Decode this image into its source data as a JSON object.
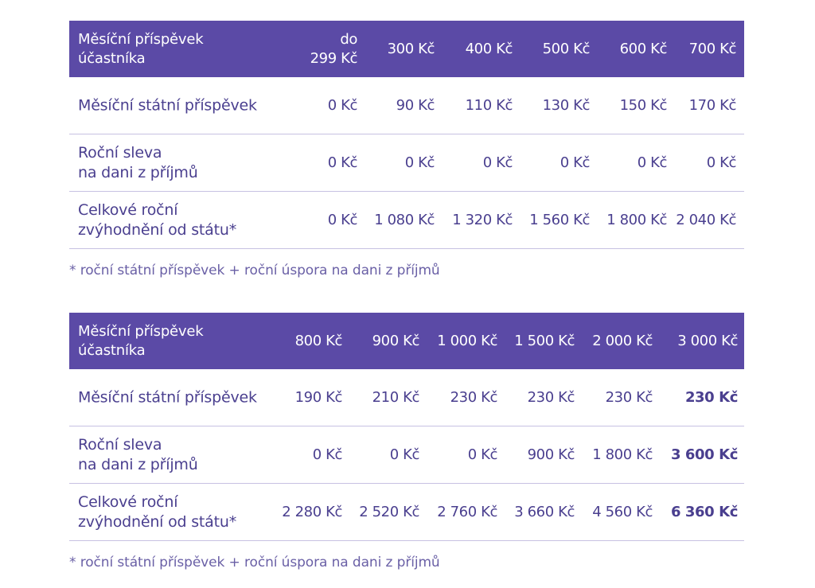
{
  "table1": {
    "header": {
      "label_line1": "Měsíční příspěvek",
      "label_line2": "účastníka",
      "cols": [
        {
          "line1": "do",
          "line2": "299 Kč"
        },
        {
          "line1": "300 Kč"
        },
        {
          "line1": "400 Kč"
        },
        {
          "line1": "500 Kč"
        },
        {
          "line1": "600 Kč"
        },
        {
          "line1": "700 Kč"
        }
      ]
    },
    "rows": [
      {
        "label_line1": "Měsíční státní příspěvek",
        "values": [
          "0 Kč",
          "90 Kč",
          "110 Kč",
          "130 Kč",
          "150 Kč",
          "170 Kč"
        ]
      },
      {
        "label_line1": "Roční sleva",
        "label_line2": "na dani z příjmů",
        "values": [
          "0 Kč",
          "0 Kč",
          "0 Kč",
          "0 Kč",
          "0 Kč",
          "0 Kč"
        ]
      },
      {
        "label_line1": "Celkové roční",
        "label_line2": "zvýhodnění od státu*",
        "values": [
          "0 Kč",
          "1 080 Kč",
          "1 320 Kč",
          "1 560 Kč",
          "1 800 Kč",
          "2 040 Kč"
        ]
      }
    ],
    "footnote": "* roční státní příspěvek + roční úspora na dani z příjmů"
  },
  "table2": {
    "header": {
      "label_line1": "Měsíční příspěvek",
      "label_line2": "účastníka",
      "cols": [
        {
          "line1": "800 Kč"
        },
        {
          "line1": "900 Kč"
        },
        {
          "line1": "1 000 Kč"
        },
        {
          "line1": "1 500 Kč"
        },
        {
          "line1": "2 000 Kč"
        },
        {
          "line1": "3 000 Kč"
        }
      ]
    },
    "rows": [
      {
        "label_line1": "Měsíční státní příspěvek",
        "values": [
          "190 Kč",
          "210 Kč",
          "230 Kč",
          "230 Kč",
          "230 Kč",
          "230 Kč"
        ]
      },
      {
        "label_line1": "Roční sleva",
        "label_line2": "na dani z příjmů",
        "values": [
          "0 Kč",
          "0 Kč",
          "0 Kč",
          "900 Kč",
          "1 800 Kč",
          "3 600 Kč"
        ]
      },
      {
        "label_line1": "Celkové roční",
        "label_line2": "zvýhodnění od státu*",
        "values": [
          "2 280 Kč",
          "2 520 Kč",
          "2 760 Kč",
          "3 660 Kč",
          "4 560 Kč",
          "6 360 Kč"
        ]
      }
    ],
    "footnote": "* roční státní příspěvek + roční úspora na dani z příjmů"
  }
}
